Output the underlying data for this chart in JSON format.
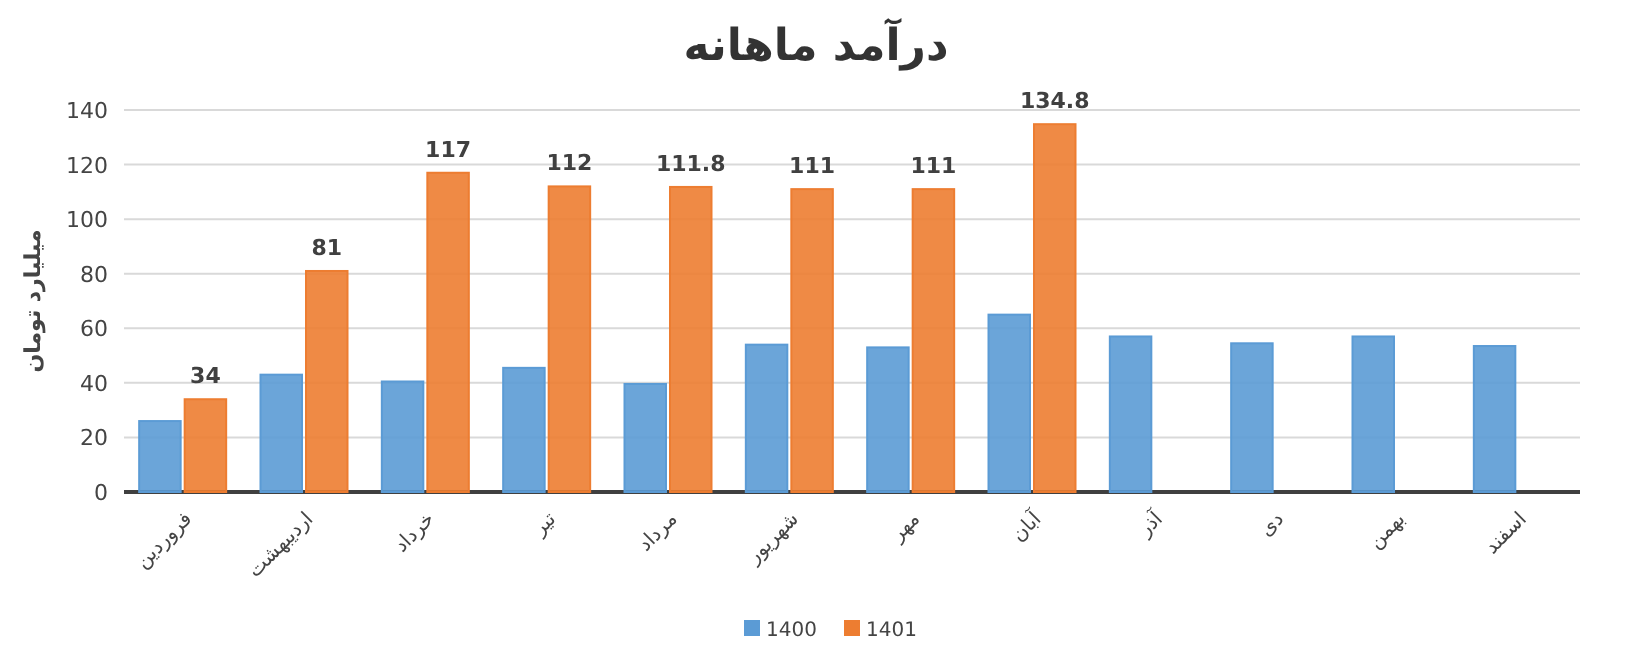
{
  "chart_data": {
    "type": "bar",
    "title": "درآمد ماهانه",
    "ylabel": "میلیارد تومان",
    "categories": [
      "فروردین",
      "اردیبهشت",
      "خرداد",
      "تیر",
      "مرداد",
      "شهریور",
      "مهر",
      "آبان",
      "آذر",
      "دی",
      "بهمن",
      "اسفند"
    ],
    "series": [
      {
        "name": "1400",
        "color": "#5b9bd5",
        "values": [
          26,
          43,
          40.5,
          45.5,
          39.6,
          54,
          53,
          65,
          57,
          54.5,
          57,
          53.5
        ]
      },
      {
        "name": "1401",
        "color": "#ed7d31",
        "values": [
          34,
          81,
          117,
          112,
          111.8,
          111,
          111,
          134.8,
          null,
          null,
          null,
          null
        ],
        "value_labels": [
          "34",
          "81",
          "117",
          "112",
          "111.8",
          "111",
          "111",
          "134.8",
          null,
          null,
          null,
          null
        ]
      }
    ],
    "ylim": [
      0,
      140
    ],
    "yticks": [
      0,
      20,
      40,
      60,
      80,
      100,
      120,
      140
    ],
    "grid": "y",
    "legend": "bottom"
  }
}
